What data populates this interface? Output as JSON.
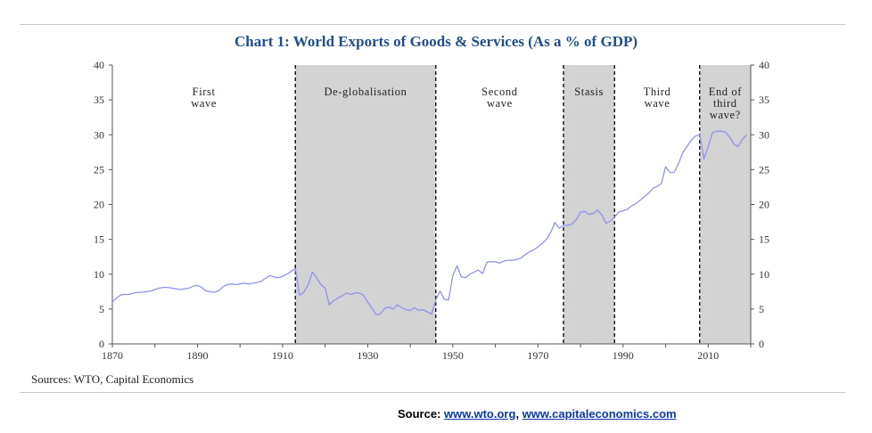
{
  "chart_data": {
    "type": "line",
    "title": "Chart 1: World Exports of Goods & Services (As a % of GDP)",
    "xlabel": "",
    "ylabel": "",
    "xlim": [
      1870,
      2020
    ],
    "ylim": [
      0,
      40
    ],
    "x_ticks": [
      1870,
      1890,
      1910,
      1930,
      1950,
      1970,
      1990,
      2010
    ],
    "y_ticks": [
      0,
      5,
      10,
      15,
      20,
      25,
      30,
      35,
      40
    ],
    "grid": false,
    "legend": "none",
    "line_color": "#8f94ee",
    "shade_color": "#d3d3d3",
    "periods": [
      {
        "label_lines": [
          "First",
          "wave"
        ],
        "start": 1870,
        "end": 1913,
        "shaded": false
      },
      {
        "label_lines": [
          "De-globalisation"
        ],
        "start": 1913,
        "end": 1946,
        "shaded": true
      },
      {
        "label_lines": [
          "Second",
          "wave"
        ],
        "start": 1946,
        "end": 1976,
        "shaded": false
      },
      {
        "label_lines": [
          "Stasis"
        ],
        "start": 1976,
        "end": 1988,
        "shaded": true
      },
      {
        "label_lines": [
          "Third",
          "wave"
        ],
        "start": 1988,
        "end": 2008,
        "shaded": false
      },
      {
        "label_lines": [
          "End of",
          "third",
          "wave?"
        ],
        "start": 2008,
        "end": 2020,
        "shaded": true
      }
    ],
    "dividers": [
      1913,
      1946,
      1976,
      1988,
      2008
    ],
    "series": [
      {
        "x": [
          1870,
          1871,
          1872,
          1873,
          1874,
          1875,
          1876,
          1877,
          1878,
          1879,
          1880,
          1881,
          1882,
          1883,
          1884,
          1885,
          1886,
          1887,
          1888,
          1889,
          1890,
          1891,
          1892,
          1893,
          1894,
          1895,
          1896,
          1897,
          1898,
          1899,
          1900,
          1901,
          1902,
          1903,
          1904,
          1905,
          1906,
          1907,
          1908,
          1909,
          1910,
          1911,
          1912,
          1913,
          1914,
          1915,
          1916,
          1917,
          1918,
          1919,
          1920,
          1921,
          1922,
          1923,
          1924,
          1925,
          1926,
          1927,
          1928,
          1929,
          1930,
          1931,
          1932,
          1933,
          1934,
          1935,
          1936,
          1937,
          1938,
          1939,
          1940,
          1941,
          1942,
          1943,
          1944,
          1945,
          1946,
          1947,
          1948,
          1949,
          1950,
          1951,
          1952,
          1953,
          1954,
          1955,
          1956,
          1957,
          1958,
          1959,
          1960,
          1961,
          1962,
          1963,
          1964,
          1965,
          1966,
          1967,
          1968,
          1969,
          1970,
          1971,
          1972,
          1973,
          1974,
          1975,
          1976,
          1977,
          1978,
          1979,
          1980,
          1981,
          1982,
          1983,
          1984,
          1985,
          1986,
          1987,
          1988,
          1989,
          1990,
          1991,
          1992,
          1993,
          1994,
          1995,
          1996,
          1997,
          1998,
          1999,
          2000,
          2001,
          2002,
          2003,
          2004,
          2005,
          2006,
          2007,
          2008,
          2009,
          2010,
          2011,
          2012,
          2013,
          2014,
          2015,
          2016,
          2017,
          2018,
          2019
        ],
        "values": [
          6.0,
          6.6,
          7.0,
          7.1,
          7.1,
          7.3,
          7.4,
          7.4,
          7.5,
          7.6,
          7.8,
          8.0,
          8.1,
          8.1,
          8.0,
          7.9,
          7.8,
          7.9,
          8.0,
          8.3,
          8.4,
          8.1,
          7.6,
          7.5,
          7.4,
          7.6,
          8.2,
          8.5,
          8.6,
          8.5,
          8.6,
          8.7,
          8.6,
          8.7,
          8.8,
          9.0,
          9.4,
          9.8,
          9.6,
          9.5,
          9.7,
          10.0,
          10.4,
          10.8,
          7.0,
          7.4,
          8.5,
          10.3,
          9.5,
          8.5,
          8.0,
          5.6,
          6.2,
          6.6,
          6.9,
          7.3,
          7.1,
          7.3,
          7.3,
          7.0,
          6.0,
          5.1,
          4.2,
          4.3,
          5.1,
          5.3,
          5.0,
          5.6,
          5.2,
          4.9,
          4.8,
          5.2,
          4.8,
          4.9,
          4.6,
          4.3,
          6.3,
          7.6,
          6.4,
          6.3,
          9.8,
          11.2,
          9.6,
          9.5,
          10.0,
          10.3,
          10.6,
          10.1,
          11.7,
          11.8,
          11.8,
          11.6,
          11.9,
          12.0,
          12.0,
          12.1,
          12.3,
          12.8,
          13.2,
          13.5,
          13.9,
          14.4,
          15.0,
          16.0,
          17.4,
          16.6,
          17.0,
          17.0,
          17.2,
          17.8,
          18.9,
          19.0,
          18.6,
          18.7,
          19.2,
          18.5,
          17.3,
          17.6,
          18.2,
          18.9,
          19.1,
          19.3,
          19.8,
          20.1,
          20.6,
          21.1,
          21.6,
          22.3,
          22.6,
          23.0,
          25.4,
          24.6,
          24.6,
          25.8,
          27.4,
          28.3,
          29.2,
          29.8,
          30.0,
          26.5,
          28.3,
          30.3,
          30.5,
          30.5,
          30.4,
          29.7,
          28.7,
          28.3,
          29.3,
          30.0
        ]
      }
    ]
  },
  "sources": "Sources: WTO, Capital Economics",
  "footer": {
    "label": "Source:",
    "link1": "www.wto.org",
    "separator": ",",
    "link2": "www.capitaleconomics.com"
  }
}
